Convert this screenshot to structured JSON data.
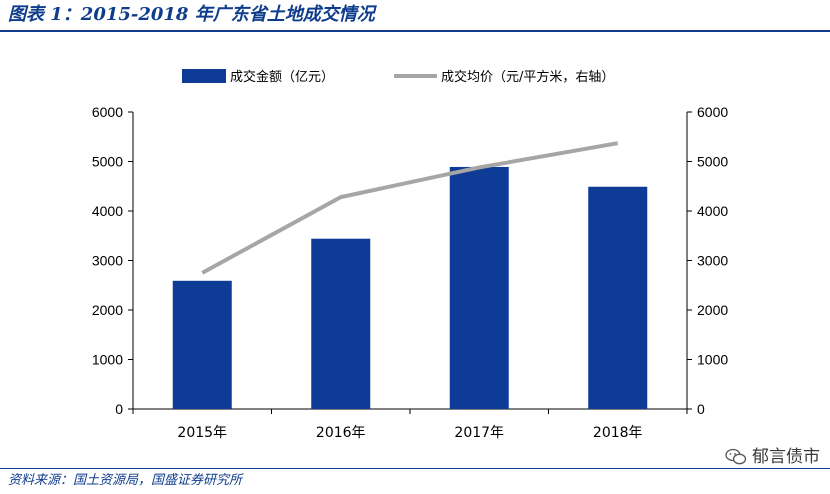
{
  "header": {
    "title": "图表 1：2015-2018 年广东省土地成交情况"
  },
  "footer": {
    "source": "资料来源：国土资源局，国盛证券研究所"
  },
  "watermark": {
    "text": "郁言债市"
  },
  "colors": {
    "bar": "#0e3b95",
    "line": "#a6a6a6",
    "brand": "#0f3d8c"
  },
  "chart_data": {
    "type": "bar+line",
    "categories": [
      "2015年",
      "2016年",
      "2017年",
      "2018年"
    ],
    "series": [
      {
        "name": "成交金额（亿元）",
        "type": "bar",
        "axis": "left",
        "values": [
          2590,
          3440,
          4890,
          4490
        ]
      },
      {
        "name": "成交均价（元/平方米，右轴）",
        "type": "line",
        "axis": "right",
        "values": [
          2750,
          4280,
          4880,
          5370
        ]
      }
    ],
    "y_left": {
      "min": 0,
      "max": 6000,
      "ticks": [
        "0",
        "1000",
        "2000",
        "3000",
        "4000",
        "5000",
        "6000"
      ]
    },
    "y_right": {
      "min": 0,
      "max": 6000,
      "ticks": [
        "0",
        "1000",
        "2000",
        "3000",
        "4000",
        "5000",
        "6000"
      ]
    },
    "grid": false,
    "legend": "top"
  }
}
